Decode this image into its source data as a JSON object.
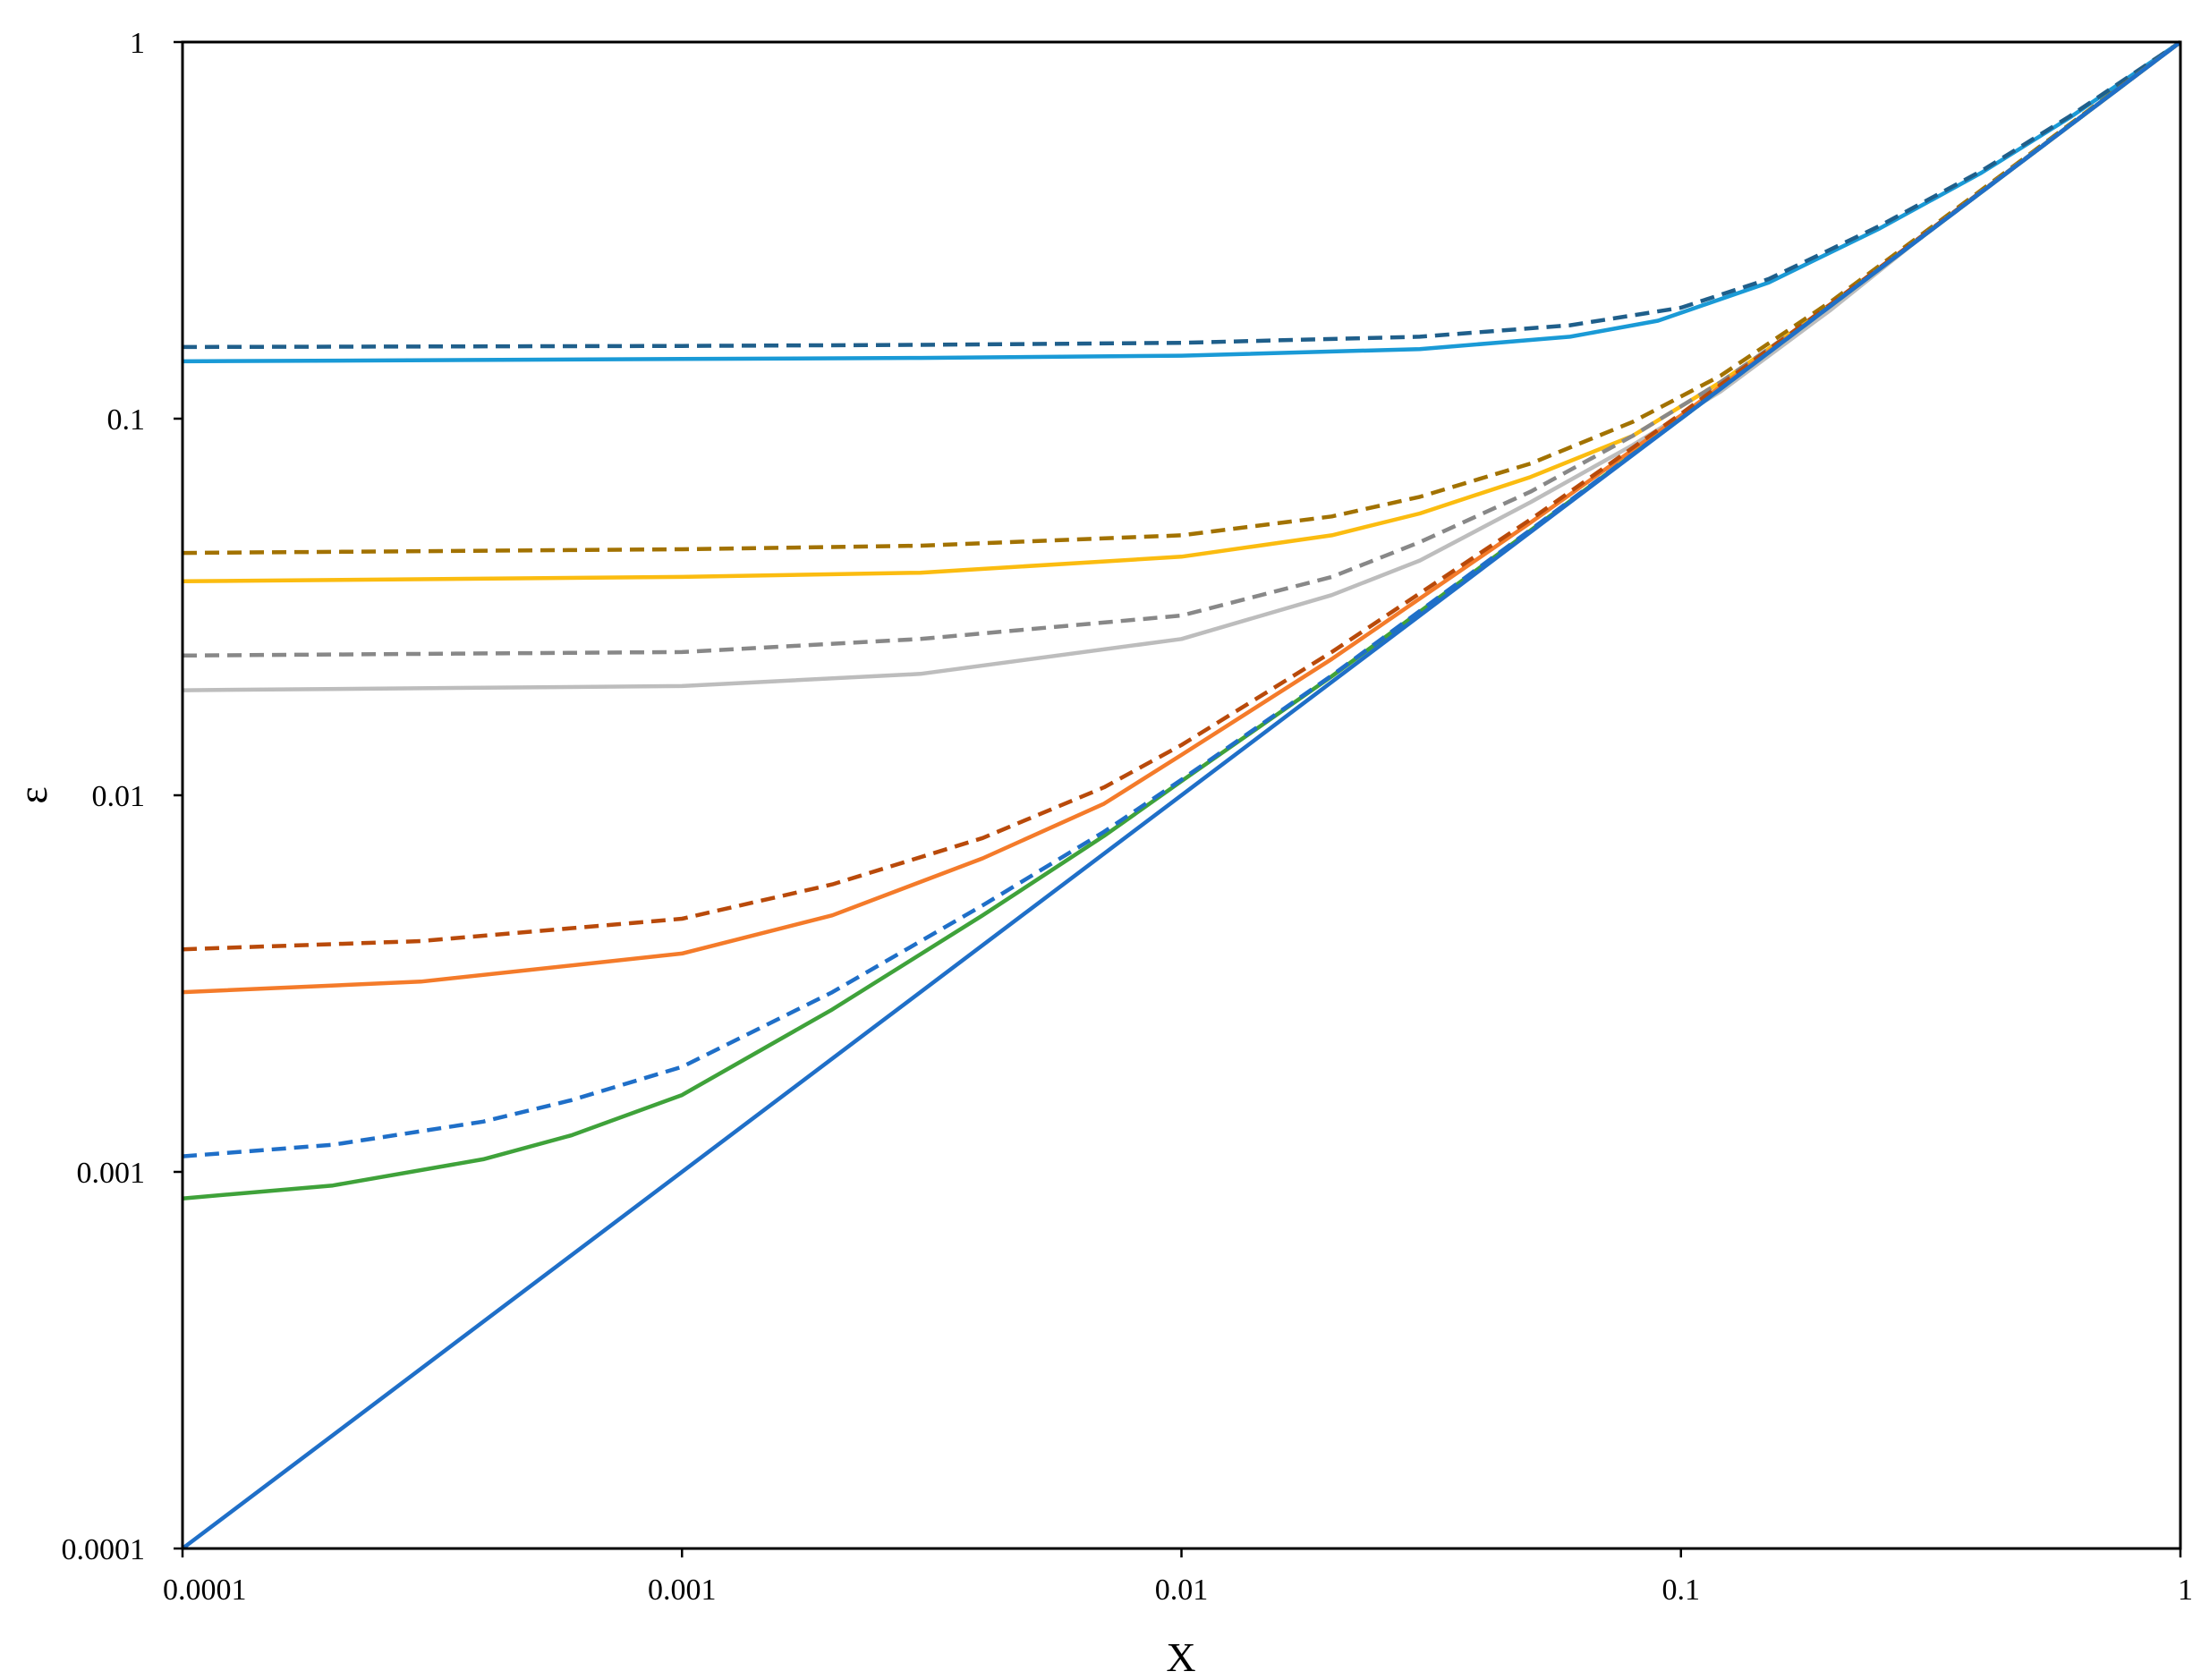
{
  "chart_data": {
    "type": "line",
    "title": "",
    "xlabel": "X",
    "ylabel": "ε",
    "xscale": "log",
    "yscale": "log",
    "xlim": [
      0.0001,
      1
    ],
    "ylim": [
      0.0001,
      1
    ],
    "x_ticks": [
      "0.0001",
      "0.001",
      "0.01",
      "0.1",
      "1"
    ],
    "y_ticks": [
      "0.0001",
      "0.001",
      "0.01",
      "0.1",
      "1"
    ],
    "grid": false,
    "legend": "none",
    "series": [
      {
        "color": "#1a9ad6",
        "dash": false,
        "x": [
          0.0001,
          0.001,
          0.003,
          0.01,
          0.03,
          0.06,
          0.09,
          0.15,
          0.25,
          0.4,
          0.6,
          1
        ],
        "y": [
          0.142,
          0.144,
          0.145,
          0.147,
          0.153,
          0.165,
          0.182,
          0.23,
          0.32,
          0.45,
          0.63,
          1
        ]
      },
      {
        "color": "#1f5f8b",
        "dash": true,
        "x": [
          0.0001,
          0.001,
          0.003,
          0.01,
          0.03,
          0.06,
          0.1,
          0.15,
          0.25,
          0.4,
          0.6,
          1
        ],
        "y": [
          0.155,
          0.156,
          0.157,
          0.159,
          0.165,
          0.177,
          0.197,
          0.235,
          0.325,
          0.455,
          0.635,
          1
        ]
      },
      {
        "color": "#fbbc10",
        "dash": false,
        "x": [
          0.0001,
          0.001,
          0.003,
          0.01,
          0.02,
          0.03,
          0.05,
          0.08,
          0.12,
          0.2,
          0.3,
          0.5,
          1
        ],
        "y": [
          0.037,
          0.038,
          0.039,
          0.043,
          0.049,
          0.056,
          0.07,
          0.09,
          0.125,
          0.2,
          0.3,
          0.5,
          1
        ]
      },
      {
        "color": "#a27200",
        "dash": true,
        "x": [
          0.0001,
          0.001,
          0.003,
          0.01,
          0.02,
          0.03,
          0.05,
          0.08,
          0.12,
          0.2,
          0.3,
          0.5,
          1
        ],
        "y": [
          0.044,
          0.045,
          0.046,
          0.049,
          0.055,
          0.062,
          0.076,
          0.098,
          0.13,
          0.205,
          0.305,
          0.505,
          1
        ]
      },
      {
        "color": "#bdbdbd",
        "dash": false,
        "x": [
          0.0001,
          0.001,
          0.003,
          0.01,
          0.02,
          0.03,
          0.05,
          0.08,
          0.12,
          0.2,
          0.3,
          0.5,
          1
        ],
        "y": [
          0.019,
          0.0195,
          0.021,
          0.026,
          0.034,
          0.042,
          0.06,
          0.085,
          0.118,
          0.195,
          0.3,
          0.5,
          1
        ]
      },
      {
        "color": "#888888",
        "dash": true,
        "x": [
          0.0001,
          0.001,
          0.003,
          0.01,
          0.02,
          0.03,
          0.05,
          0.08,
          0.12,
          0.2,
          0.3,
          0.5,
          1
        ],
        "y": [
          0.0235,
          0.024,
          0.026,
          0.03,
          0.038,
          0.047,
          0.064,
          0.09,
          0.125,
          0.2,
          0.302,
          0.502,
          1
        ]
      },
      {
        "color": "#f47b2a",
        "dash": false,
        "x": [
          0.0001,
          0.0003,
          0.001,
          0.002,
          0.004,
          0.007,
          0.01,
          0.02,
          0.05,
          0.1,
          0.2,
          0.5,
          1
        ],
        "y": [
          0.003,
          0.0032,
          0.0038,
          0.0048,
          0.0068,
          0.0095,
          0.0128,
          0.023,
          0.053,
          0.102,
          0.2,
          0.5,
          1
        ]
      },
      {
        "color": "#b94a0a",
        "dash": true,
        "x": [
          0.0001,
          0.0003,
          0.001,
          0.002,
          0.004,
          0.007,
          0.01,
          0.02,
          0.05,
          0.1,
          0.2,
          0.5,
          1
        ],
        "y": [
          0.0039,
          0.0041,
          0.0047,
          0.0058,
          0.0077,
          0.0105,
          0.0136,
          0.024,
          0.054,
          0.103,
          0.202,
          0.5,
          1
        ]
      },
      {
        "color": "#3fa23a",
        "dash": false,
        "x": [
          0.0001,
          0.0002,
          0.0004,
          0.0006,
          0.001,
          0.002,
          0.004,
          0.007,
          0.01,
          0.02,
          0.05,
          0.1,
          0.2,
          0.5,
          1
        ],
        "y": [
          0.00085,
          0.00092,
          0.00108,
          0.00125,
          0.0016,
          0.0027,
          0.0048,
          0.0078,
          0.0109,
          0.0207,
          0.0505,
          0.1,
          0.2,
          0.5,
          1
        ]
      },
      {
        "color": "#1f6fc8",
        "dash": true,
        "x": [
          0.0001,
          0.0002,
          0.0004,
          0.0006,
          0.001,
          0.002,
          0.004,
          0.007,
          0.01,
          0.02,
          0.05,
          0.1,
          0.2,
          0.5,
          1
        ],
        "y": [
          0.0011,
          0.00118,
          0.00136,
          0.00155,
          0.0019,
          0.003,
          0.0051,
          0.008,
          0.011,
          0.0208,
          0.0507,
          0.1,
          0.2,
          0.5,
          1
        ]
      },
      {
        "color": "#1f6fc8",
        "dash": false,
        "x": [
          0.0001,
          1
        ],
        "y": [
          0.0001,
          1
        ]
      }
    ]
  }
}
